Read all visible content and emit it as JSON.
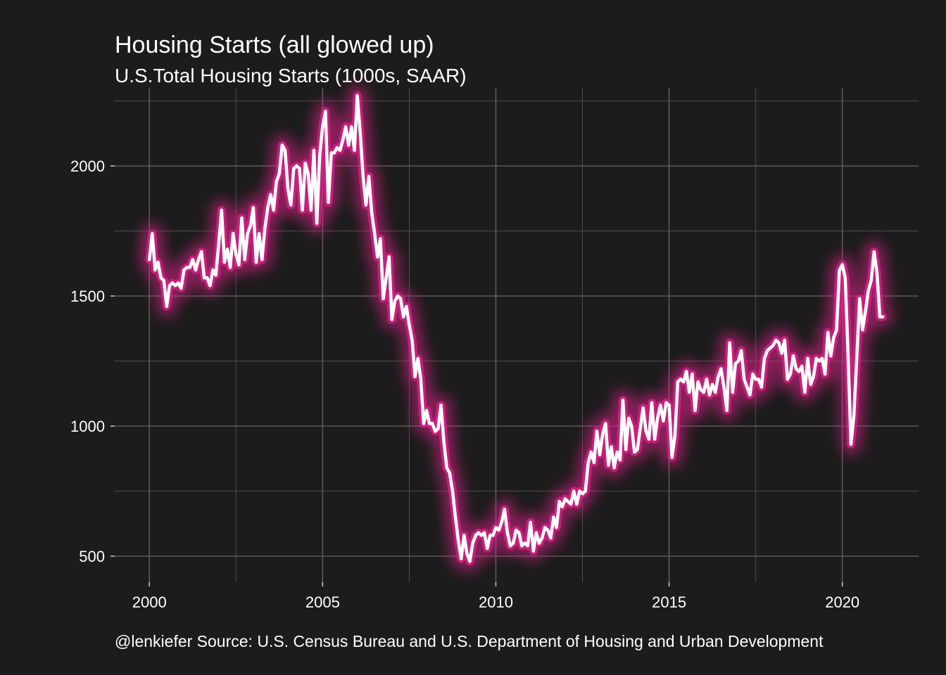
{
  "chart_data": {
    "type": "line",
    "title": "Housing Starts (all glowed up)",
    "subtitle": "U.S.Total Housing Starts (1000s, SAAR)",
    "caption": "@lenkiefer Source: U.S. Census Bureau and U.S. Department of Housing and Urban Development",
    "xlabel": "",
    "ylabel": "",
    "xlim": [
      1999.0,
      2022.2
    ],
    "ylim": [
      400,
      2300
    ],
    "x_ticks": [
      2000,
      2005,
      2010,
      2015,
      2020
    ],
    "y_ticks": [
      500,
      1000,
      1500,
      2000
    ],
    "grid": true,
    "colors": {
      "background": "#1c1c1c",
      "grid": "#5a5a5a",
      "line": "#ffffff",
      "glow": "#e0218a"
    },
    "series": [
      {
        "x": [
          "2000-01",
          "2000-02",
          "2000-03",
          "2000-04",
          "2000-05",
          "2000-06",
          "2000-07",
          "2000-08",
          "2000-09",
          "2000-10",
          "2000-11",
          "2000-12",
          "2001-01",
          "2001-02",
          "2001-03",
          "2001-04",
          "2001-05",
          "2001-06",
          "2001-07",
          "2001-08",
          "2001-09",
          "2001-10",
          "2001-11",
          "2001-12",
          "2002-01",
          "2002-02",
          "2002-03",
          "2002-04",
          "2002-05",
          "2002-06",
          "2002-07",
          "2002-08",
          "2002-09",
          "2002-10",
          "2002-11",
          "2002-12",
          "2003-01",
          "2003-02",
          "2003-03",
          "2003-04",
          "2003-05",
          "2003-06",
          "2003-07",
          "2003-08",
          "2003-09",
          "2003-10",
          "2003-11",
          "2003-12",
          "2004-01",
          "2004-02",
          "2004-03",
          "2004-04",
          "2004-05",
          "2004-06",
          "2004-07",
          "2004-08",
          "2004-09",
          "2004-10",
          "2004-11",
          "2004-12",
          "2005-01",
          "2005-02",
          "2005-03",
          "2005-04",
          "2005-05",
          "2005-06",
          "2005-07",
          "2005-08",
          "2005-09",
          "2005-10",
          "2005-11",
          "2005-12",
          "2006-01",
          "2006-02",
          "2006-03",
          "2006-04",
          "2006-05",
          "2006-06",
          "2006-07",
          "2006-08",
          "2006-09",
          "2006-10",
          "2006-11",
          "2006-12",
          "2007-01",
          "2007-02",
          "2007-03",
          "2007-04",
          "2007-05",
          "2007-06",
          "2007-07",
          "2007-08",
          "2007-09",
          "2007-10",
          "2007-11",
          "2007-12",
          "2008-01",
          "2008-02",
          "2008-03",
          "2008-04",
          "2008-05",
          "2008-06",
          "2008-07",
          "2008-08",
          "2008-09",
          "2008-10",
          "2008-11",
          "2008-12",
          "2009-01",
          "2009-02",
          "2009-03",
          "2009-04",
          "2009-05",
          "2009-06",
          "2009-07",
          "2009-08",
          "2009-09",
          "2009-10",
          "2009-11",
          "2009-12",
          "2010-01",
          "2010-02",
          "2010-03",
          "2010-04",
          "2010-05",
          "2010-06",
          "2010-07",
          "2010-08",
          "2010-09",
          "2010-10",
          "2010-11",
          "2010-12",
          "2011-01",
          "2011-02",
          "2011-03",
          "2011-04",
          "2011-05",
          "2011-06",
          "2011-07",
          "2011-08",
          "2011-09",
          "2011-10",
          "2011-11",
          "2011-12",
          "2012-01",
          "2012-02",
          "2012-03",
          "2012-04",
          "2012-05",
          "2012-06",
          "2012-07",
          "2012-08",
          "2012-09",
          "2012-10",
          "2012-11",
          "2012-12",
          "2013-01",
          "2013-02",
          "2013-03",
          "2013-04",
          "2013-05",
          "2013-06",
          "2013-07",
          "2013-08",
          "2013-09",
          "2013-10",
          "2013-11",
          "2013-12",
          "2014-01",
          "2014-02",
          "2014-03",
          "2014-04",
          "2014-05",
          "2014-06",
          "2014-07",
          "2014-08",
          "2014-09",
          "2014-10",
          "2014-11",
          "2014-12",
          "2015-01",
          "2015-02",
          "2015-03",
          "2015-04",
          "2015-05",
          "2015-06",
          "2015-07",
          "2015-08",
          "2015-09",
          "2015-10",
          "2015-11",
          "2015-12",
          "2016-01",
          "2016-02",
          "2016-03",
          "2016-04",
          "2016-05",
          "2016-06",
          "2016-07",
          "2016-08",
          "2016-09",
          "2016-10",
          "2016-11",
          "2016-12",
          "2017-01",
          "2017-02",
          "2017-03",
          "2017-04",
          "2017-05",
          "2017-06",
          "2017-07",
          "2017-08",
          "2017-09",
          "2017-10",
          "2017-11",
          "2017-12",
          "2018-01",
          "2018-02",
          "2018-03",
          "2018-04",
          "2018-05",
          "2018-06",
          "2018-07",
          "2018-08",
          "2018-09",
          "2018-10",
          "2018-11",
          "2018-12",
          "2019-01",
          "2019-02",
          "2019-03",
          "2019-04",
          "2019-05",
          "2019-06",
          "2019-07",
          "2019-08",
          "2019-09",
          "2019-10",
          "2019-11",
          "2019-12",
          "2020-01",
          "2020-02",
          "2020-03",
          "2020-04",
          "2020-05",
          "2020-06",
          "2020-07",
          "2020-08",
          "2020-09",
          "2020-10",
          "2020-11",
          "2020-12",
          "2021-01",
          "2021-02",
          "2021-03"
        ],
        "values": [
          1640,
          1740,
          1600,
          1630,
          1570,
          1560,
          1460,
          1540,
          1550,
          1540,
          1550,
          1530,
          1600,
          1610,
          1610,
          1640,
          1600,
          1640,
          1670,
          1570,
          1570,
          1540,
          1600,
          1580,
          1700,
          1830,
          1630,
          1680,
          1610,
          1740,
          1660,
          1620,
          1800,
          1640,
          1740,
          1770,
          1840,
          1630,
          1740,
          1640,
          1760,
          1840,
          1890,
          1830,
          1940,
          1970,
          2080,
          2060,
          1910,
          1850,
          1990,
          2000,
          1990,
          1830,
          2010,
          1970,
          1830,
          2060,
          1780,
          2040,
          2150,
          2210,
          1860,
          2050,
          2050,
          2070,
          2060,
          2100,
          2150,
          2080,
          2150,
          2060,
          2270,
          2130,
          1960,
          1850,
          1960,
          1820,
          1740,
          1650,
          1720,
          1490,
          1570,
          1650,
          1410,
          1480,
          1500,
          1490,
          1420,
          1460,
          1390,
          1330,
          1190,
          1260,
          1180,
          1010,
          1060,
          1010,
          1010,
          980,
          990,
          1080,
          940,
          840,
          820,
          750,
          650,
          560,
          490,
          580,
          510,
          480,
          550,
          580,
          590,
          580,
          590,
          530,
          580,
          580,
          610,
          600,
          630,
          680,
          590,
          540,
          550,
          600,
          590,
          540,
          550,
          540,
          630,
          520,
          590,
          550,
          570,
          610,
          600,
          570,
          650,
          610,
          710,
          690,
          720,
          710,
          700,
          750,
          700,
          750,
          740,
          750,
          860,
          900,
          860,
          980,
          890,
          970,
          1010,
          850,
          920,
          840,
          900,
          870,
          1100,
          910,
          1030,
          1000,
          900,
          910,
          990,
          1070,
          980,
          950,
          1090,
          950,
          1030,
          1080,
          1020,
          1090,
          1080,
          880,
          960,
          1170,
          1180,
          1170,
          1210,
          1130,
          1200,
          1060,
          1170,
          1140,
          1130,
          1180,
          1120,
          1160,
          1130,
          1190,
          1220,
          1150,
          1060,
          1320,
          1130,
          1240,
          1250,
          1290,
          1180,
          1150,
          1120,
          1200,
          1180,
          1180,
          1150,
          1260,
          1290,
          1300,
          1310,
          1330,
          1320,
          1280,
          1330,
          1180,
          1200,
          1270,
          1220,
          1210,
          1230,
          1130,
          1260,
          1160,
          1190,
          1260,
          1250,
          1260,
          1200,
          1360,
          1270,
          1340,
          1370,
          1600,
          1620,
          1570,
          1270,
          930,
          1040,
          1260,
          1490,
          1370,
          1440,
          1520,
          1560,
          1670,
          1590,
          1420,
          1420
        ]
      }
    ]
  }
}
